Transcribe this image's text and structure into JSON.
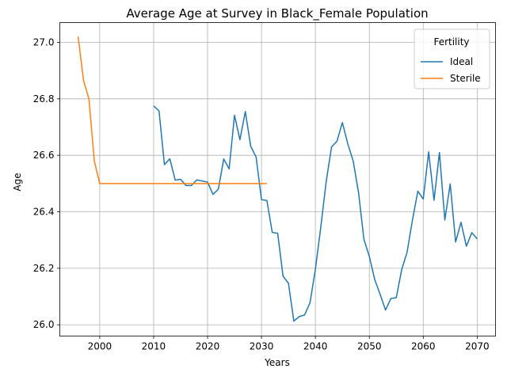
{
  "chart_data": {
    "type": "line",
    "title": "Average Age at Survey in Black_Female Population",
    "xlabel": "Years",
    "ylabel": "Age",
    "xlim": [
      1992.6,
      2073.4
    ],
    "ylim": [
      25.96,
      27.07
    ],
    "x_ticks": [
      2000,
      2010,
      2020,
      2030,
      2040,
      2050,
      2060,
      2070
    ],
    "y_ticks": [
      26.0,
      26.2,
      26.4,
      26.6,
      26.8,
      27.0
    ],
    "x_tick_labels": [
      "2000",
      "2010",
      "2020",
      "2030",
      "2040",
      "2050",
      "2060",
      "2070"
    ],
    "y_tick_labels": [
      "26.0",
      "26.2",
      "26.4",
      "26.6",
      "26.8",
      "27.0"
    ],
    "grid": true,
    "legend": {
      "title": "Fertility",
      "position": "top-right"
    },
    "series": [
      {
        "name": "Ideal",
        "color": "#1f77b4",
        "x": [
          2010,
          2011,
          2012,
          2013,
          2014,
          2015,
          2016,
          2017,
          2018,
          2019,
          2020,
          2021,
          2022,
          2023,
          2024,
          2025,
          2026,
          2027,
          2028,
          2029,
          2030,
          2031,
          2032,
          2033,
          2034,
          2035,
          2036,
          2037,
          2038,
          2039,
          2040,
          2041,
          2042,
          2043,
          2044,
          2045,
          2046,
          2047,
          2048,
          2049,
          2050,
          2051,
          2052,
          2053,
          2054,
          2055,
          2056,
          2057,
          2058,
          2059,
          2060,
          2061,
          2062,
          2063,
          2064,
          2065,
          2066,
          2067,
          2068,
          2069,
          2070
        ],
        "values": [
          26.775,
          26.757,
          26.567,
          26.588,
          26.512,
          26.515,
          26.493,
          26.493,
          26.513,
          26.509,
          26.505,
          26.462,
          26.48,
          26.587,
          26.552,
          26.742,
          26.655,
          26.755,
          26.632,
          26.594,
          26.443,
          26.44,
          26.327,
          26.324,
          26.172,
          26.147,
          26.013,
          26.029,
          26.035,
          26.078,
          26.197,
          26.346,
          26.507,
          26.63,
          26.65,
          26.716,
          26.641,
          26.58,
          26.468,
          26.302,
          26.242,
          26.16,
          26.108,
          26.052,
          26.093,
          26.096,
          26.195,
          26.257,
          26.371,
          26.473,
          26.445,
          26.612,
          26.441,
          26.61,
          26.371,
          26.499,
          26.293,
          26.363,
          26.278,
          26.326,
          26.304
        ]
      },
      {
        "name": "Sterile",
        "color": "#ff7f0e",
        "x": [
          1996,
          1997,
          1998,
          1999,
          2000,
          2001,
          2002,
          2003,
          2004,
          2005,
          2006,
          2007,
          2008,
          2009,
          2010,
          2011,
          2012,
          2013,
          2014,
          2015,
          2016,
          2017,
          2018,
          2019,
          2020,
          2021,
          2022,
          2023,
          2024,
          2025,
          2026,
          2027,
          2028,
          2029,
          2030,
          2031
        ],
        "values": [
          27.02,
          26.865,
          26.8,
          26.58,
          26.5,
          26.5,
          26.5,
          26.5,
          26.5,
          26.5,
          26.5,
          26.5,
          26.5,
          26.5,
          26.5,
          26.5,
          26.5,
          26.5,
          26.5,
          26.5,
          26.5,
          26.5,
          26.5,
          26.5,
          26.5,
          26.5,
          26.5,
          26.5,
          26.5,
          26.5,
          26.5,
          26.5,
          26.5,
          26.5,
          26.5,
          26.5
        ]
      }
    ]
  }
}
